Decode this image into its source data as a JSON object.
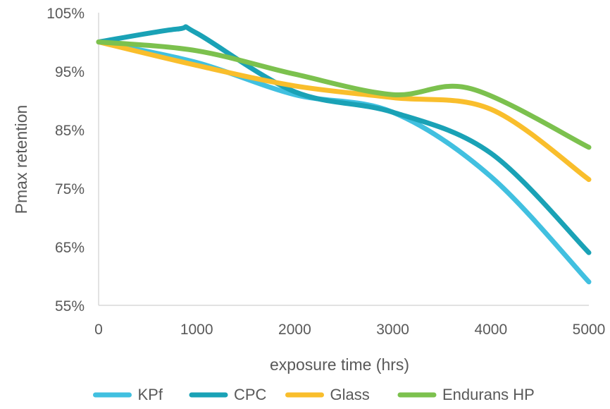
{
  "chart_data": {
    "type": "line",
    "title": "",
    "xlabel": "exposure time (hrs)",
    "ylabel": "Pmax retention",
    "xlim": [
      0,
      5000
    ],
    "ylim": [
      55,
      105
    ],
    "xticks": [
      0,
      1000,
      2000,
      3000,
      4000,
      5000
    ],
    "xtick_labels": [
      "0",
      "1000",
      "2000",
      "3000",
      "4000",
      "5000"
    ],
    "yticks": [
      55,
      65,
      75,
      85,
      95,
      105
    ],
    "ytick_labels": [
      "55%",
      "65%",
      "75%",
      "85%",
      "95%",
      "105%"
    ],
    "grid": false,
    "legend_position": "bottom",
    "series": [
      {
        "name": "KPf",
        "color": "#41C0E0",
        "x": [
          0,
          1000,
          2000,
          3000,
          4000,
          5000
        ],
        "y": [
          100,
          96.5,
          91,
          88,
          77,
          59
        ]
      },
      {
        "name": "CPC",
        "color": "#1AA2B6",
        "x": [
          0,
          800,
          1000,
          2000,
          3000,
          4000,
          5000
        ],
        "y": [
          100,
          102.2,
          101.5,
          91.5,
          88,
          81,
          64
        ]
      },
      {
        "name": "Glass",
        "color": "#F9BE2C",
        "x": [
          0,
          1000,
          2000,
          3000,
          4000,
          5000
        ],
        "y": [
          100,
          96,
          92.5,
          90.5,
          88.5,
          76.5
        ]
      },
      {
        "name": "Endurans HP",
        "color": "#7CC14E",
        "x": [
          0,
          1000,
          2000,
          3000,
          3800,
          5000
        ],
        "y": [
          100,
          98.5,
          94.5,
          91,
          92,
          82
        ]
      }
    ]
  }
}
